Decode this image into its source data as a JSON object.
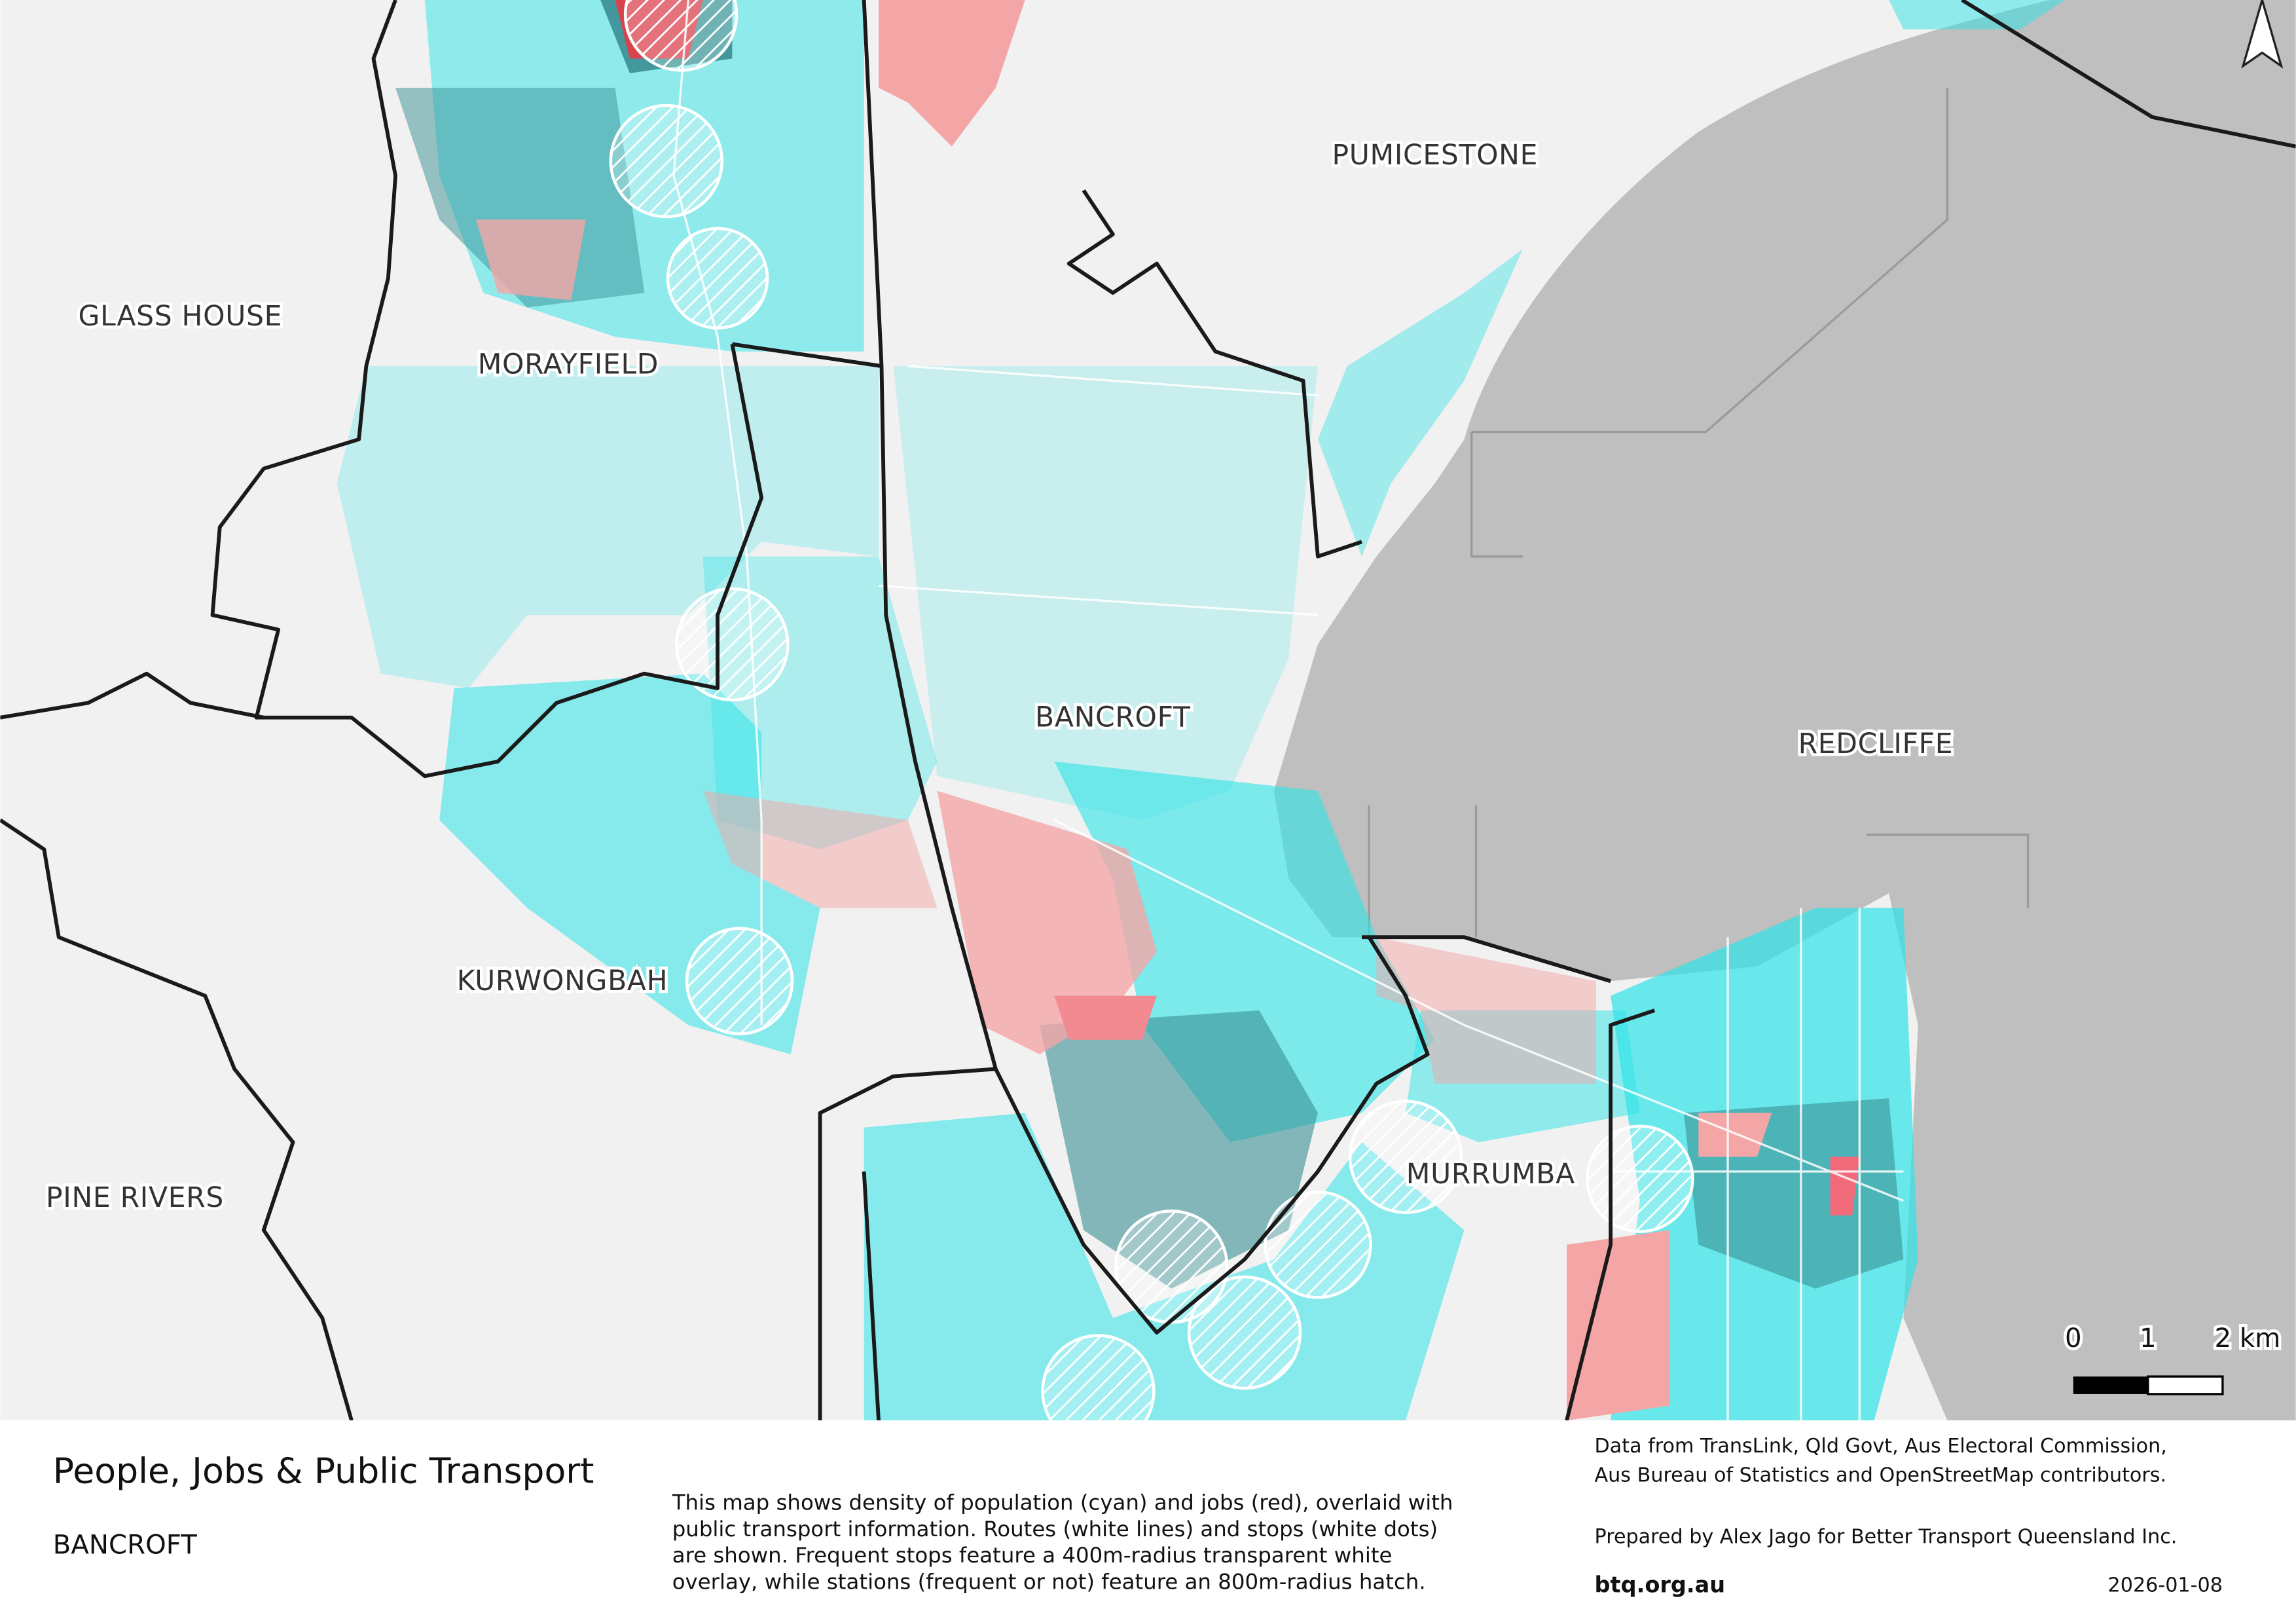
{
  "map": {
    "labels": [
      "PUMICESTONE",
      "GLASS HOUSE",
      "MORAYFIELD",
      "BANCROFT",
      "REDCLIFFE",
      "KURWONGBAH",
      "MURRUMBA",
      "PINE RIVERS"
    ],
    "scale_bar": {
      "labels": [
        "0",
        "1",
        "2 km"
      ]
    }
  },
  "footer": {
    "title": "People, Jobs & Public Transport",
    "subtitle": "BANCROFT",
    "description": [
      "This map shows density of population (cyan) and jobs (red), overlaid with",
      "public transport information. Routes (white lines) and stops (white dots)",
      "are shown. Frequent stops feature a 400m-radius transparent white",
      "overlay, while stations (frequent or not) feature an 800m-radius hatch."
    ],
    "sources": [
      "Data from TransLink,  Qld Govt,  Aus Electoral Commission,",
      "Aus Bureau of Statistics and OpenStreetMap contributors."
    ],
    "prepared_by": "Prepared by Alex Jago for Better Transport Queensland Inc.",
    "website": "btq.org.au",
    "date": "2026-01-08"
  }
}
